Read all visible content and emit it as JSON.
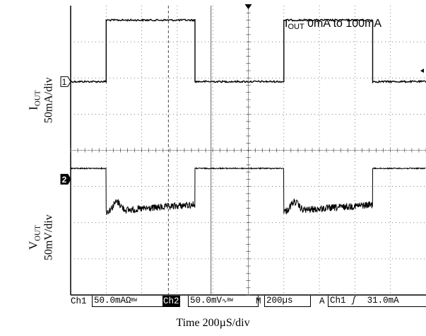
{
  "chart_data": {
    "type": "line",
    "title": "",
    "annotation_main": "I",
    "annotation_sub": "OUT",
    "annotation_rest": " 0mA to 100mA",
    "xlabel": "Time 200µS/div",
    "ylabels": [
      {
        "main": "I",
        "sub": "OUT",
        "scale": "50mA/div"
      },
      {
        "main": "V",
        "sub": "OUT",
        "scale": "50mV/div"
      }
    ],
    "x_divisions": 10,
    "y_divisions": 8,
    "grid": true,
    "channel_markers": [
      "1",
      "2"
    ],
    "series": [
      {
        "name": "Ch1",
        "x": [
          0,
          1,
          1,
          3.5,
          3.5,
          6,
          6,
          8.5,
          8.5,
          10
        ],
        "y": [
          5.9,
          5.9,
          7.6,
          7.6,
          5.9,
          5.9,
          7.6,
          7.6,
          5.9,
          5.9
        ]
      },
      {
        "name": "Ch2",
        "x": [
          0,
          1,
          1.05,
          3.5,
          3.55,
          6,
          6.05,
          8.5,
          8.55,
          10
        ],
        "y": [
          3.5,
          3.5,
          2.3,
          2.3,
          3.5,
          3.5,
          2.3,
          2.3,
          3.5,
          3.5
        ]
      }
    ]
  },
  "status_bar": {
    "ch1_label": "Ch1",
    "ch1_scale": "50.0mAΩ",
    "ch1_suffix": "BW",
    "ch2_label": "Ch2",
    "ch2_scale": "50.0mV",
    "ch2_suffix": "BW",
    "timebase_label": "M",
    "timebase": "200µs",
    "trigger_mode": "A",
    "trigger_source": "Ch1",
    "trigger_slope": "ʃ",
    "trigger_level": "31.0mA"
  }
}
